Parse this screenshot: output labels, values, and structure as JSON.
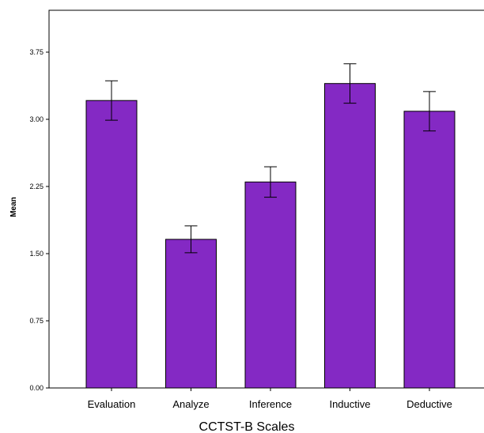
{
  "chart_data": {
    "type": "bar",
    "title": "",
    "xlabel": "CCTST-B Scales",
    "ylabel": "Mean",
    "ylim": [
      0,
      4.0
    ],
    "yticks": [
      0.0,
      0.75,
      1.5,
      2.25,
      3.0,
      3.75
    ],
    "ytick_labels": [
      "0.00",
      "0.75",
      "1.50",
      "2.25",
      "3.00",
      "3.75"
    ],
    "grid": false,
    "legend": "none",
    "categories": [
      "Evaluation",
      "Analyze",
      "Inference",
      "Inductive",
      "Deductive"
    ],
    "values": [
      3.21,
      1.66,
      2.3,
      3.4,
      3.09
    ],
    "error_low": [
      2.99,
      1.51,
      2.13,
      3.18,
      2.87
    ],
    "error_high": [
      3.43,
      1.81,
      2.47,
      3.62,
      3.31
    ],
    "colors": {
      "bar_fill": "#8429c4",
      "bar_edge": "#000000",
      "axis": "#000000",
      "error_bar": "#000000"
    }
  }
}
